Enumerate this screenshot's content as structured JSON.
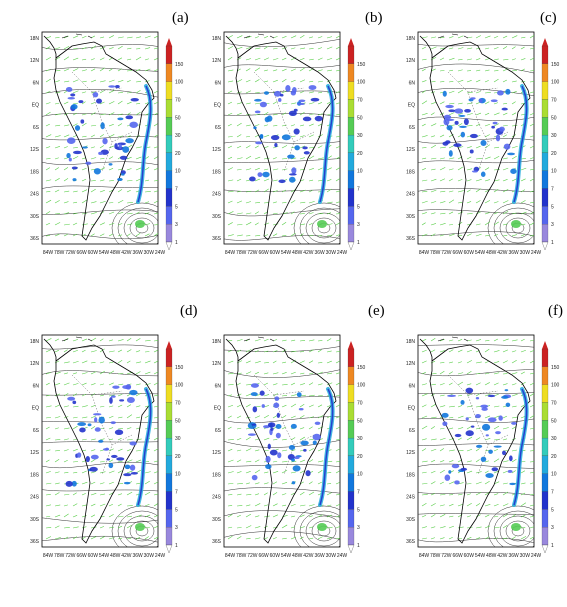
{
  "chart_data": [
    {
      "type": "heatmap",
      "panel_label": "(a)",
      "y_tick_labels": [
        "18N",
        "12N",
        "6N",
        "EQ",
        "6S",
        "12S",
        "18S",
        "24S",
        "30S",
        "36S"
      ],
      "x_tick_labels": [
        "84W",
        "78W",
        "72W",
        "66W",
        "60W",
        "54W",
        "48W",
        "42W",
        "36W",
        "30W",
        "24W"
      ],
      "colorbar_values": [
        "150",
        "100",
        "70",
        "50",
        "30",
        "20",
        "10",
        "7",
        "5",
        "3",
        "1"
      ]
    },
    {
      "type": "heatmap",
      "panel_label": "(b)",
      "y_tick_labels": [
        "18N",
        "12N",
        "6N",
        "EQ",
        "6S",
        "12S",
        "18S",
        "24S",
        "30S",
        "36S"
      ],
      "x_tick_labels": [
        "84W",
        "78W",
        "72W",
        "66W",
        "60W",
        "54W",
        "48W",
        "42W",
        "36W",
        "30W",
        "24W"
      ],
      "colorbar_values": [
        "150",
        "100",
        "70",
        "50",
        "30",
        "20",
        "10",
        "7",
        "5",
        "3",
        "1"
      ]
    },
    {
      "type": "heatmap",
      "panel_label": "(c)",
      "y_tick_labels": [
        "18N",
        "12N",
        "6N",
        "EQ",
        "6S",
        "12S",
        "18S",
        "24S",
        "30S",
        "36S"
      ],
      "x_tick_labels": [
        "84W",
        "78W",
        "72W",
        "66W",
        "60W",
        "54W",
        "48W",
        "42W",
        "36W",
        "30W",
        "24W"
      ],
      "colorbar_values": [
        "150",
        "100",
        "70",
        "50",
        "30",
        "20",
        "10",
        "7",
        "5",
        "3",
        "1"
      ]
    },
    {
      "type": "heatmap",
      "panel_label": "(d)",
      "y_tick_labels": [
        "18N",
        "12N",
        "6N",
        "EQ",
        "6S",
        "12S",
        "18S",
        "24S",
        "30S",
        "36S"
      ],
      "x_tick_labels": [
        "84W",
        "78W",
        "72W",
        "66W",
        "60W",
        "54W",
        "48W",
        "42W",
        "36W",
        "30W",
        "24W"
      ],
      "colorbar_values": [
        "150",
        "100",
        "70",
        "50",
        "30",
        "20",
        "10",
        "7",
        "5",
        "3",
        "1"
      ]
    },
    {
      "type": "heatmap",
      "panel_label": "(e)",
      "y_tick_labels": [
        "18N",
        "12N",
        "6N",
        "EQ",
        "6S",
        "12S",
        "18S",
        "24S",
        "30S",
        "36S"
      ],
      "x_tick_labels": [
        "84W",
        "78W",
        "72W",
        "66W",
        "60W",
        "54W",
        "48W",
        "42W",
        "36W",
        "30W",
        "24W"
      ],
      "colorbar_values": [
        "150",
        "100",
        "70",
        "50",
        "30",
        "20",
        "10",
        "7",
        "5",
        "3",
        "1"
      ]
    },
    {
      "type": "heatmap",
      "panel_label": "(f)",
      "y_tick_labels": [
        "18N",
        "12N",
        "6N",
        "EQ",
        "6S",
        "12S",
        "18S",
        "24S",
        "30S",
        "36S"
      ],
      "x_tick_labels": [
        "84W",
        "78W",
        "72W",
        "66W",
        "60W",
        "54W",
        "48W",
        "42W",
        "36W",
        "30W",
        "24W"
      ],
      "colorbar_values": [
        "150",
        "100",
        "70",
        "50",
        "30",
        "20",
        "10",
        "7",
        "5",
        "3",
        "1"
      ]
    }
  ],
  "colors": {
    "colorbar": [
      "#9988dd",
      "#5566ee",
      "#2233cc",
      "#1177dd",
      "#22aadd",
      "#33ccbb",
      "#55cc55",
      "#aadd33",
      "#eedd22",
      "#ee8822",
      "#cc2222"
    ],
    "wind_vectors": "#55cc44",
    "contours": "#333333",
    "coastline": "#000000"
  }
}
